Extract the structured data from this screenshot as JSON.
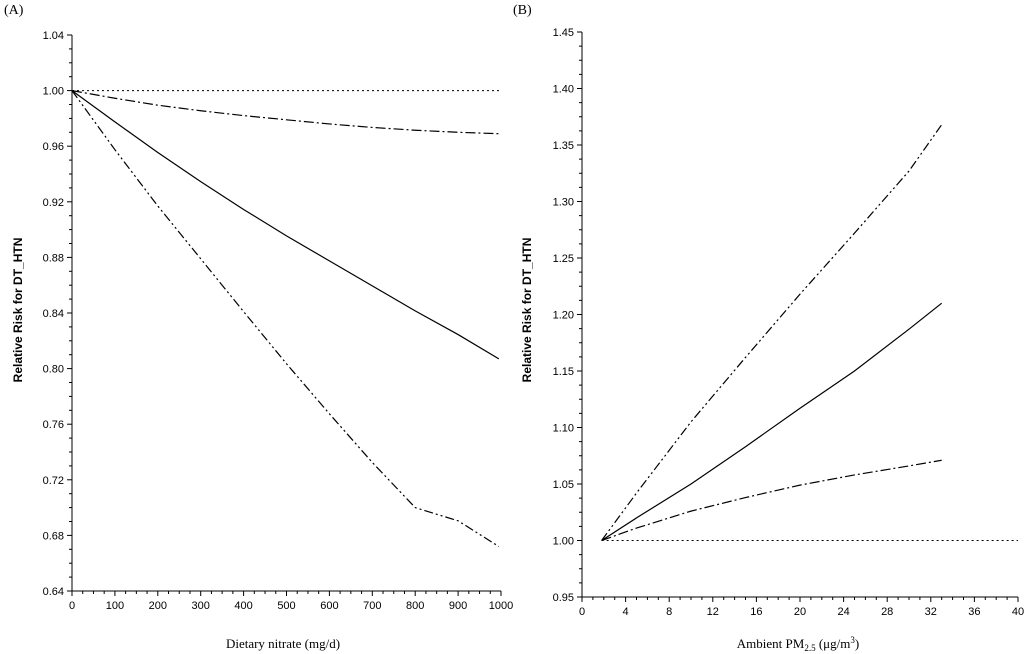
{
  "chart_data": [
    {
      "type": "line",
      "panel_label": "(A)",
      "xlabel": "Dietary nitrate (mg/d)",
      "ylabel": "Relative Risk for DT_HTN",
      "xlim": [
        0,
        1000
      ],
      "ylim": [
        0.64,
        1.04
      ],
      "xticks": [
        0,
        100,
        200,
        300,
        400,
        500,
        600,
        700,
        800,
        900,
        1000
      ],
      "yticks": [
        0.64,
        0.68,
        0.72,
        0.76,
        0.8,
        0.84,
        0.88,
        0.92,
        0.96,
        1.0,
        1.04
      ],
      "ytick_decimals": 2,
      "grid": false,
      "series": [
        {
          "style": "solid",
          "x": [
            0,
            100,
            200,
            300,
            400,
            500,
            600,
            700,
            800,
            900,
            995
          ],
          "y": [
            1.0,
            0.9775,
            0.9555,
            0.9345,
            0.9145,
            0.8955,
            0.8775,
            0.8595,
            0.8415,
            0.8245,
            0.807
          ]
        },
        {
          "style": "dash-dot-dot",
          "x": [
            0,
            100,
            200,
            300,
            400,
            500,
            600,
            700,
            800,
            900,
            995
          ],
          "y": [
            1.0,
            0.9575,
            0.917,
            0.879,
            0.841,
            0.8035,
            0.7675,
            0.7325,
            0.7,
            0.6905,
            0.672
          ]
        },
        {
          "style": "dash-dot",
          "x": [
            0,
            100,
            200,
            300,
            400,
            500,
            600,
            700,
            800,
            900,
            995
          ],
          "y": [
            1.0,
            0.9945,
            0.9895,
            0.9855,
            0.982,
            0.979,
            0.976,
            0.9735,
            0.9715,
            0.97,
            0.969
          ]
        },
        {
          "style": "dotted",
          "x": [
            0,
            1000
          ],
          "y": [
            1.0,
            1.0
          ]
        }
      ]
    },
    {
      "type": "line",
      "panel_label": "(B)",
      "xlabel_main": "Ambient PM",
      "xlabel_sub": "2.5",
      "xlabel_unit": " (μg/m",
      "xlabel_sup": "3",
      "xlabel_end": ")",
      "ylabel": "Relative Risk for DT_HTN",
      "xlim": [
        0,
        40
      ],
      "ylim": [
        0.95,
        1.45
      ],
      "xticks": [
        0,
        4,
        8,
        12,
        16,
        20,
        24,
        28,
        32,
        36,
        40
      ],
      "yticks": [
        0.95,
        1.0,
        1.05,
        1.1,
        1.15,
        1.2,
        1.25,
        1.3,
        1.35,
        1.4,
        1.45
      ],
      "ytick_decimals": 2,
      "grid": false,
      "series": [
        {
          "style": "solid",
          "x": [
            1.8,
            5,
            10,
            15,
            20,
            25,
            30,
            33
          ],
          "y": [
            1.0,
            1.02,
            1.05,
            1.083,
            1.117,
            1.15,
            1.187,
            1.21
          ]
        },
        {
          "style": "dash-dot-dot",
          "x": [
            1.8,
            5,
            10,
            15,
            20,
            25,
            30,
            33
          ],
          "y": [
            1.0,
            1.042,
            1.105,
            1.162,
            1.218,
            1.272,
            1.327,
            1.368
          ]
        },
        {
          "style": "dash-dot",
          "x": [
            1.8,
            5,
            10,
            15,
            20,
            25,
            30,
            33
          ],
          "y": [
            1.0,
            1.011,
            1.026,
            1.038,
            1.049,
            1.058,
            1.066,
            1.071
          ]
        },
        {
          "style": "dotted",
          "x": [
            1.8,
            40
          ],
          "y": [
            1.0,
            1.0
          ]
        }
      ]
    }
  ]
}
